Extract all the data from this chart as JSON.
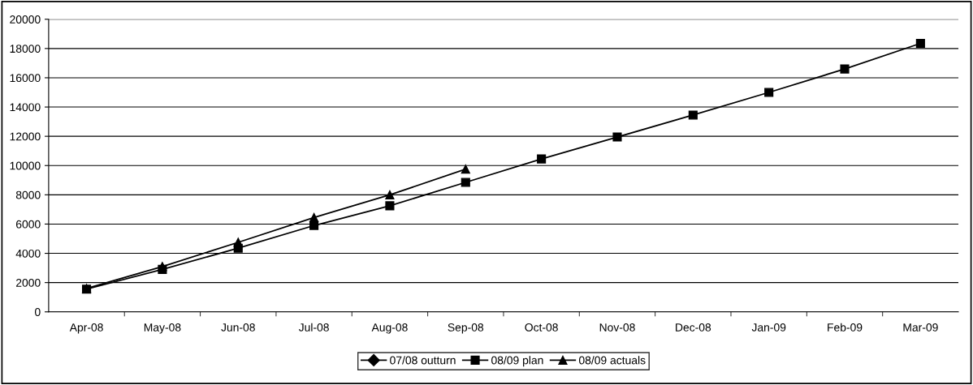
{
  "chart_data": {
    "type": "line",
    "categories": [
      "Apr-08",
      "May-08",
      "Jun-08",
      "Jul-08",
      "Aug-08",
      "Sep-08",
      "Oct-08",
      "Nov-08",
      "Dec-08",
      "Jan-09",
      "Feb-09",
      "Mar-09"
    ],
    "series": [
      {
        "name": "07/08 outturn",
        "color": "#000000",
        "marker": "diamond",
        "values": [
          null,
          null,
          null,
          null,
          null,
          null,
          null,
          null,
          null,
          null,
          null,
          null
        ]
      },
      {
        "name": "08/09 plan",
        "color": "#000000",
        "marker": "square",
        "values": [
          1550,
          2900,
          4350,
          5900,
          7250,
          8850,
          10450,
          11950,
          13450,
          15000,
          16600,
          18350
        ]
      },
      {
        "name": "08/09 actuals",
        "color": "#000000",
        "marker": "triangle",
        "values": [
          1600,
          3100,
          4750,
          6450,
          8000,
          9750,
          null,
          null,
          null,
          null,
          null,
          null
        ]
      }
    ],
    "ylim": [
      0,
      20000
    ],
    "yticks": [
      0,
      2000,
      4000,
      6000,
      8000,
      10000,
      12000,
      14000,
      16000,
      18000,
      20000
    ],
    "grid": "y",
    "legend": "bottom",
    "line_style": "solid"
  }
}
